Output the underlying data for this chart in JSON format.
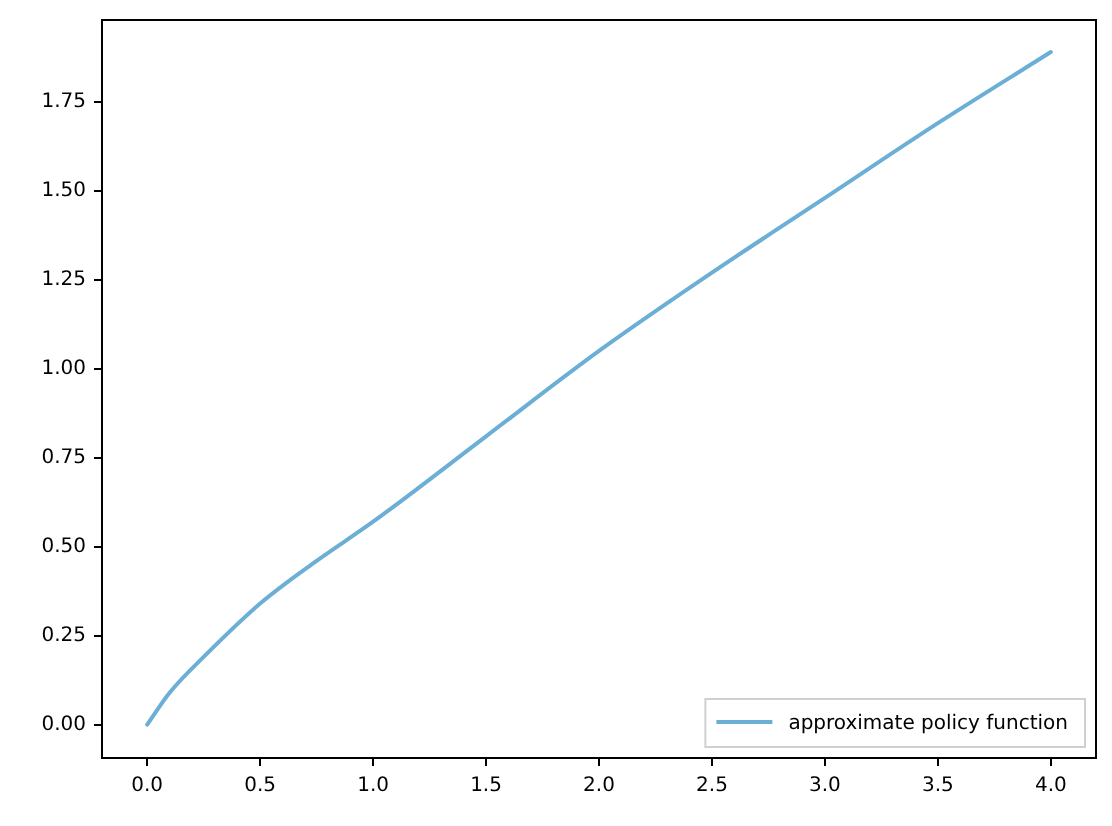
{
  "chart_data": {
    "type": "line",
    "x": [
      0,
      0.1,
      0.25,
      0.5,
      0.75,
      1,
      1.5,
      2,
      2.5,
      3,
      3.5,
      4
    ],
    "series": [
      {
        "name": "approximate policy function",
        "color": "#6baed6",
        "values": [
          0,
          0.09,
          0.19,
          0.34,
          0.46,
          0.57,
          0.81,
          1.05,
          1.27,
          1.48,
          1.69,
          1.89
        ]
      }
    ],
    "xlim": [
      -0.2,
      4.2
    ],
    "xticks": [
      {
        "value": 0,
        "label": "0.0"
      },
      {
        "value": 0.5,
        "label": "0.5"
      },
      {
        "value": 1,
        "label": "1.0"
      },
      {
        "value": 1.5,
        "label": "1.5"
      },
      {
        "value": 2,
        "label": "2.0"
      },
      {
        "value": 2.5,
        "label": "2.5"
      },
      {
        "value": 3,
        "label": "3.0"
      },
      {
        "value": 3.5,
        "label": "3.5"
      },
      {
        "value": 4,
        "label": "4.0"
      }
    ],
    "ylim": [
      -0.094,
      1.98
    ],
    "yticks": [
      {
        "value": 0,
        "label": "0.00"
      },
      {
        "value": 0.25,
        "label": "0.25"
      },
      {
        "value": 0.5,
        "label": "0.50"
      },
      {
        "value": 0.75,
        "label": "0.75"
      },
      {
        "value": 1,
        "label": "1.00"
      },
      {
        "value": 1.25,
        "label": "1.25"
      },
      {
        "value": 1.5,
        "label": "1.50"
      },
      {
        "value": 1.75,
        "label": "1.75"
      }
    ],
    "grid": false,
    "legend": "bottom right",
    "marker": "none",
    "line_style": "solid"
  }
}
